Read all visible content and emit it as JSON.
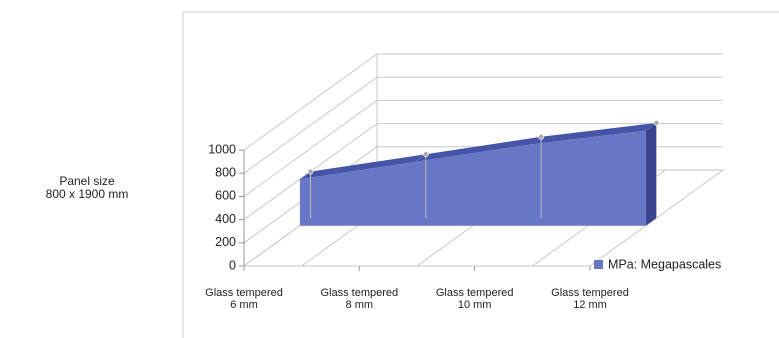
{
  "chart_data": {
    "type": "area3d",
    "annotation": "Panel size\n800 x 1900 mm",
    "categories": [
      "Glass tempered\n6 mm",
      "Glass tempered\n8 mm",
      "Glass tempered\n10 mm",
      "Glass tempered\n12 mm"
    ],
    "series": [
      {
        "name": "MPa: Megapascales",
        "color": "#6777c6",
        "values": [
          400,
          550,
          700,
          820
        ]
      }
    ],
    "ylim": [
      0,
      1000
    ],
    "yticks": [
      0,
      200,
      400,
      600,
      800,
      1000
    ],
    "grid": true,
    "legend": "right"
  }
}
